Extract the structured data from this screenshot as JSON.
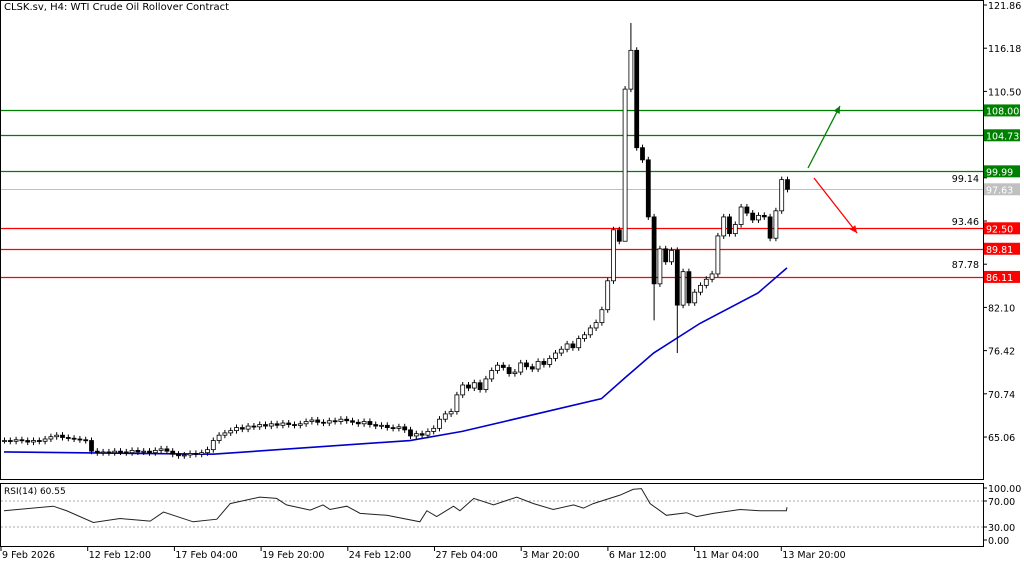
{
  "header": {
    "title": "CLSK.sv, H4:  WTI Crude Oil Rollover Contract"
  },
  "chart_data": {
    "type": "candlestick",
    "symbol": "CLSK.sv",
    "timeframe": "H4",
    "instrument": "WTI Crude Oil Rollover Contract",
    "y_ticks": [
      "121.86",
      "116.18",
      "110.50",
      "99.14",
      "93.46",
      "87.78",
      "82.10",
      "76.42",
      "70.74",
      "65.06"
    ],
    "ylim": [
      59.0,
      121.86
    ],
    "x_ticks": [
      "9 Feb 2026",
      "12 Feb 12:00",
      "17 Feb 04:00",
      "19 Feb 20:00",
      "24 Feb 12:00",
      "27 Feb 04:00",
      "3 Mar 20:00",
      "6 Mar 12:00",
      "11 Mar 04:00",
      "13 Mar 20:00"
    ],
    "closes": [
      64.6,
      64.5,
      64.7,
      64.6,
      64.4,
      64.6,
      64.5,
      64.8,
      65.1,
      65.3,
      65.0,
      64.9,
      64.8,
      64.7,
      64.6,
      63.2,
      63.0,
      63.1,
      63.0,
      63.2,
      63.1,
      63.0,
      63.3,
      63.1,
      63.2,
      63.0,
      63.3,
      63.5,
      63.2,
      62.8,
      62.6,
      62.7,
      62.9,
      62.8,
      63.0,
      63.4,
      64.6,
      65.3,
      65.6,
      65.9,
      66.3,
      66.1,
      66.5,
      66.4,
      66.7,
      66.5,
      66.8,
      66.6,
      66.9,
      66.7,
      66.6,
      66.8,
      67.1,
      67.3,
      67.0,
      66.9,
      67.2,
      67.1,
      67.4,
      67.2,
      67.0,
      66.8,
      67.1,
      66.7,
      66.5,
      66.6,
      66.3,
      66.2,
      66.4,
      66.0,
      65.2,
      65.5,
      65.3,
      65.8,
      66.2,
      67.4,
      68.1,
      68.4,
      70.6,
      71.9,
      71.5,
      72.2,
      71.3,
      72.7,
      73.8,
      74.5,
      74.2,
      73.4,
      73.6,
      74.8,
      74.3,
      74.0,
      75.0,
      74.6,
      75.4,
      76.1,
      76.6,
      77.3,
      76.8,
      78.0,
      78.5,
      79.4,
      80.1,
      81.8,
      85.6,
      92.3,
      90.8,
      110.8,
      115.9,
      103.1,
      101.5,
      94.0,
      85.2,
      89.8,
      88.1,
      89.6,
      82.4,
      86.8,
      82.7,
      84.1,
      85.0,
      85.8,
      86.5,
      91.5,
      94.0,
      91.8,
      93.0,
      95.3,
      94.5,
      93.6,
      94.2,
      94.0,
      91.2,
      94.8,
      98.9,
      97.63
    ],
    "wick_extremes": [
      {
        "bar": 108,
        "high": 119.5
      },
      {
        "bar": 107,
        "low": 102.0
      },
      {
        "bar": 112,
        "low": 80.4
      },
      {
        "bar": 116,
        "low": 76.1
      }
    ],
    "moving_average": {
      "color": "#0000cc",
      "points": [
        [
          0,
          63.1
        ],
        [
          36,
          62.8
        ],
        [
          70,
          64.6
        ],
        [
          79,
          65.8
        ],
        [
          103,
          70.1
        ],
        [
          107,
          72.8
        ],
        [
          112,
          76.1
        ],
        [
          120,
          80.0
        ],
        [
          130,
          84.0
        ],
        [
          135,
          87.3
        ]
      ]
    },
    "levels": [
      {
        "value": "108.00",
        "color": "#008000"
      },
      {
        "value": "104.73",
        "color": "#008000"
      },
      {
        "value": "99.99",
        "color": "#008000"
      },
      {
        "value": "97.63",
        "color": "#c0c0c0"
      },
      {
        "value": "92.50",
        "color": "#ff0000"
      },
      {
        "value": "89.81",
        "color": "#ff0000"
      },
      {
        "value": "86.11",
        "color": "#ff0000"
      }
    ],
    "annotations": [
      {
        "type": "arrow",
        "direction": "up",
        "color": "#008000"
      },
      {
        "type": "arrow",
        "direction": "down",
        "color": "#ff0000"
      }
    ],
    "rsi": {
      "label": "RSI(14) 60.55",
      "y_ticks": [
        "100.00",
        "70.00",
        "30.00",
        "0.00"
      ],
      "levels": [
        70,
        30
      ],
      "points": [
        [
          0,
          55
        ],
        [
          8.5,
          62
        ],
        [
          10.8,
          55
        ],
        [
          15.4,
          37
        ],
        [
          20,
          43
        ],
        [
          25.2,
          39
        ],
        [
          27.5,
          53
        ],
        [
          32.6,
          38
        ],
        [
          36.7,
          42
        ],
        [
          39,
          66
        ],
        [
          44.1,
          76
        ],
        [
          47,
          74
        ],
        [
          48.7,
          64
        ],
        [
          52.8,
          56
        ],
        [
          55,
          64
        ],
        [
          56.2,
          57
        ],
        [
          59.1,
          62
        ],
        [
          61.4,
          51
        ],
        [
          66,
          48
        ],
        [
          71.7,
          38
        ],
        [
          72.9,
          55
        ],
        [
          74.6,
          46
        ],
        [
          77.5,
          62
        ],
        [
          78.6,
          55
        ],
        [
          81,
          74
        ],
        [
          84.4,
          64
        ],
        [
          88.4,
          76
        ],
        [
          91.3,
          66
        ],
        [
          94.7,
          57
        ],
        [
          98.2,
          64
        ],
        [
          99.9,
          59
        ],
        [
          101.6,
          66
        ],
        [
          106.2,
          79
        ],
        [
          108.5,
          88
        ],
        [
          109.9,
          89
        ],
        [
          111.4,
          66
        ],
        [
          114.2,
          48
        ],
        [
          117.7,
          52
        ],
        [
          119.4,
          46
        ],
        [
          122.3,
          51
        ],
        [
          126.9,
          57
        ],
        [
          130.3,
          55
        ],
        [
          134.9,
          55
        ],
        [
          135,
          60.55
        ]
      ]
    }
  }
}
